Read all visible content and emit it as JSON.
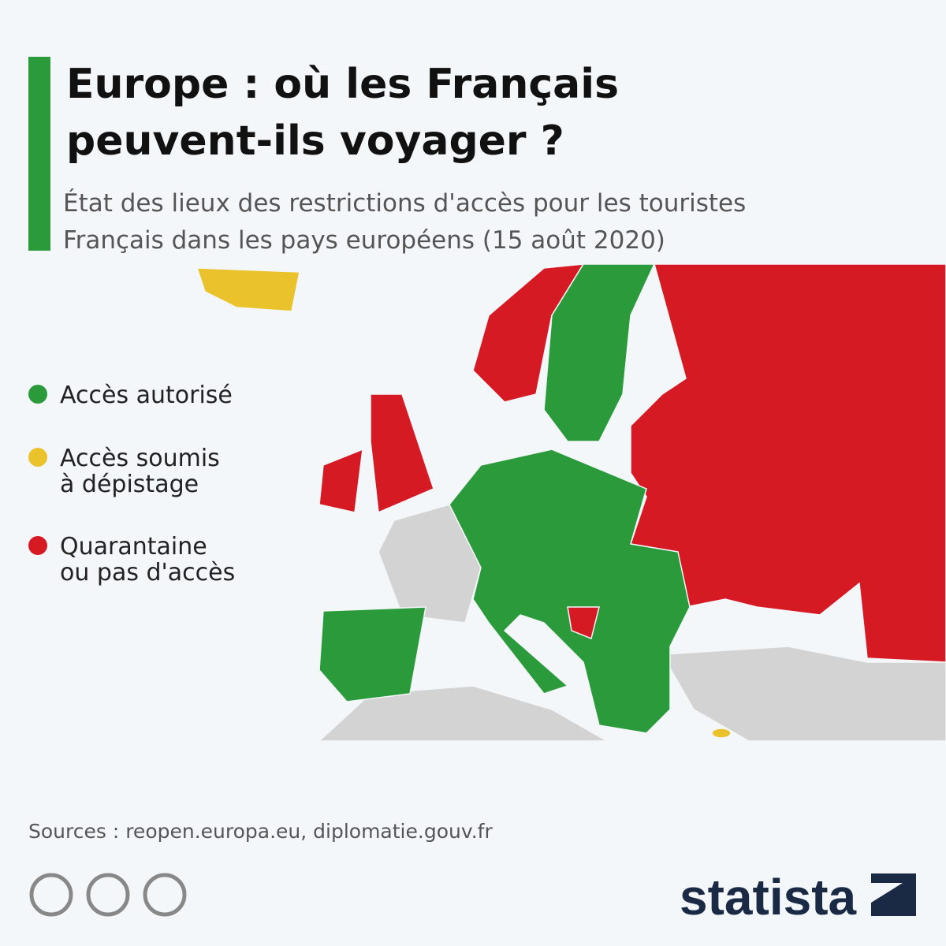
{
  "header": {
    "title_lines": [
      "Europe : où les Français",
      "peuvent-ils voyager ?"
    ],
    "subtitle_lines": [
      "État des lieux des restrictions d'accès pour les touristes",
      "Français dans les pays européens (15 août 2020)"
    ]
  },
  "legend": [
    {
      "lines": [
        "Accès autorisé"
      ],
      "color": "#2a9a3a"
    },
    {
      "lines": [
        "Accès soumis",
        "à dépistage"
      ],
      "color": "#e9c22c"
    },
    {
      "lines": [
        "Quarantaine",
        "ou pas d'accès"
      ],
      "color": "#d61a24"
    }
  ],
  "footer": {
    "sources": "Sources : reopen.europa.eu, diplomatie.gouv.fr",
    "brand": "statista"
  }
}
